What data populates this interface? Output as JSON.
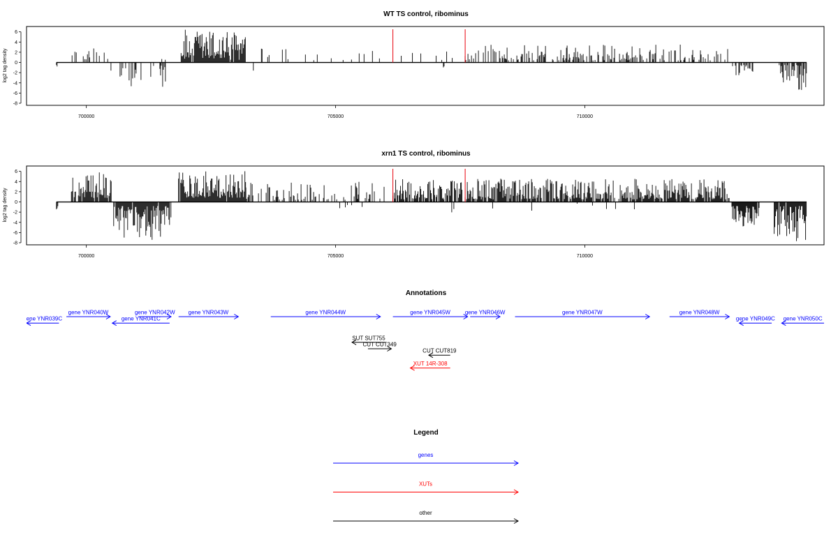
{
  "chart_data": [
    {
      "type": "bar",
      "title": "WT TS control, ribominus",
      "ylabel": "log2 tag density",
      "xlabel": "",
      "xlim": [
        698800,
        714800
      ],
      "ylim": [
        -8,
        6.5
      ],
      "yticks": [
        6,
        4,
        2,
        0,
        -2,
        -4,
        -6,
        -8
      ],
      "xticks": [
        700000,
        705000,
        710000
      ],
      "xtick_labels": [
        "700000",
        "705000",
        "710000"
      ],
      "baseline": [
        699400,
        714450
      ],
      "highlight_lines": [
        {
          "x": 706150,
          "color": "#e8000b",
          "value": 6.5
        },
        {
          "x": 707600,
          "color": "#e8000b",
          "value": 6.5
        }
      ],
      "series": [
        {
          "color": "#000000",
          "segments": [
            {
              "from": 699400,
              "to": 699420,
              "strand": "-",
              "min": 0.5,
              "max": 1.1,
              "density": 0.8
            },
            {
              "from": 699700,
              "to": 700480,
              "strand": "+",
              "min": 0.6,
              "max": 3.0,
              "density": 0.35
            },
            {
              "from": 700480,
              "to": 701600,
              "strand": "-",
              "min": 0.5,
              "max": 5.4,
              "density": 0.3
            },
            {
              "from": 701500,
              "to": 701600,
              "strand": "+",
              "min": 0.5,
              "max": 1.5,
              "density": 0.2
            },
            {
              "from": 701900,
              "to": 703200,
              "strand": "+",
              "min": 0.5,
              "max": 6.5,
              "density": 0.95
            },
            {
              "from": 703350,
              "to": 703360,
              "strand": "-",
              "min": 1.5,
              "max": 1.6,
              "density": 1
            },
            {
              "from": 703400,
              "to": 706000,
              "strand": "+",
              "min": 0.4,
              "max": 2.8,
              "density": 0.08
            },
            {
              "from": 706150,
              "to": 707600,
              "strand": "+",
              "min": 0.4,
              "max": 2.6,
              "density": 0.12
            },
            {
              "from": 706700,
              "to": 707600,
              "strand": "-",
              "min": 0.4,
              "max": 1.5,
              "density": 0.03
            },
            {
              "from": 707600,
              "to": 712000,
              "strand": "+",
              "min": 0.4,
              "max": 3.5,
              "density": 0.4
            },
            {
              "from": 711900,
              "to": 712900,
              "strand": "+",
              "min": 0.4,
              "max": 3.0,
              "density": 0.35
            },
            {
              "from": 712950,
              "to": 713400,
              "strand": "-",
              "min": 0.5,
              "max": 2.6,
              "density": 0.3
            },
            {
              "from": 713900,
              "to": 714450,
              "strand": "-",
              "min": 0.5,
              "max": 5.4,
              "density": 0.75
            }
          ]
        }
      ]
    },
    {
      "type": "bar",
      "title": "xrn1 TS control, ribominus",
      "ylabel": "log2 tag density",
      "xlabel": "",
      "xlim": [
        698800,
        714800
      ],
      "ylim": [
        -8,
        6.5
      ],
      "yticks": [
        6,
        4,
        2,
        0,
        -2,
        -4,
        -6,
        -8
      ],
      "xticks": [
        700000,
        705000,
        710000
      ],
      "xtick_labels": [
        "700000",
        "705000",
        "710000"
      ],
      "baseline": [
        699400,
        714450
      ],
      "highlight_lines": [
        {
          "x": 706150,
          "color": "#e8000b",
          "value": 6.5
        },
        {
          "x": 707600,
          "color": "#e8000b",
          "value": 6.5
        }
      ],
      "series": [
        {
          "color": "#000000",
          "segments": [
            {
              "from": 699400,
              "to": 699440,
              "strand": "-",
              "min": 0.8,
              "max": 2.8,
              "density": 0.9
            },
            {
              "from": 699700,
              "to": 700500,
              "strand": "+",
              "min": 0.8,
              "max": 6.0,
              "density": 0.95
            },
            {
              "from": 700520,
              "to": 701700,
              "strand": "-",
              "min": 0.8,
              "max": 7.6,
              "density": 0.95
            },
            {
              "from": 701850,
              "to": 703200,
              "strand": "+",
              "min": 0.8,
              "max": 6.2,
              "density": 0.97
            },
            {
              "from": 703200,
              "to": 706000,
              "strand": "+",
              "min": 0.4,
              "max": 4.0,
              "density": 0.35
            },
            {
              "from": 705000,
              "to": 706000,
              "strand": "-",
              "min": 0.3,
              "max": 1.3,
              "density": 0.05
            },
            {
              "from": 706150,
              "to": 707550,
              "strand": "+",
              "min": 0.5,
              "max": 4.5,
              "density": 0.75
            },
            {
              "from": 706700,
              "to": 707600,
              "strand": "-",
              "min": 0.3,
              "max": 2.2,
              "density": 0.07
            },
            {
              "from": 707600,
              "to": 712900,
              "strand": "+",
              "min": 0.5,
              "max": 4.6,
              "density": 0.85
            },
            {
              "from": 707800,
              "to": 712500,
              "strand": "-",
              "min": 0.3,
              "max": 1.8,
              "density": 0.04
            },
            {
              "from": 712950,
              "to": 713500,
              "strand": "-",
              "min": 0.8,
              "max": 4.8,
              "density": 0.95
            },
            {
              "from": 713800,
              "to": 714450,
              "strand": "-",
              "min": 0.8,
              "max": 7.8,
              "density": 0.95
            }
          ]
        }
      ]
    }
  ],
  "annotations": {
    "title": "Annotations",
    "items": [
      {
        "label": "gene YNR039C",
        "strand": "-",
        "start": 698800,
        "end": 699450,
        "row": 1,
        "color": "#0000ff"
      },
      {
        "label": "gene YNR040W",
        "strand": "+",
        "start": 699600,
        "end": 700480,
        "row": 0,
        "color": "#0000ff"
      },
      {
        "label": "gene YNR041C",
        "strand": "-",
        "start": 700520,
        "end": 701670,
        "row": 1,
        "color": "#0000ff"
      },
      {
        "label": "gene YNR042W",
        "strand": "+",
        "start": 701050,
        "end": 701700,
        "row": 0,
        "color": "#0000ff"
      },
      {
        "label": "gene YNR043W",
        "strand": "+",
        "start": 701850,
        "end": 703050,
        "row": 0,
        "color": "#0000ff"
      },
      {
        "label": "gene YNR044W",
        "strand": "+",
        "start": 703700,
        "end": 705900,
        "row": 0,
        "color": "#0000ff"
      },
      {
        "label": "gene YNR045W",
        "strand": "+",
        "start": 706150,
        "end": 707650,
        "row": 0,
        "color": "#0000ff"
      },
      {
        "label": "gene YNR046W",
        "strand": "+",
        "start": 707700,
        "end": 708300,
        "row": 0,
        "color": "#0000ff"
      },
      {
        "label": "gene YNR047W",
        "strand": "+",
        "start": 708600,
        "end": 711300,
        "row": 0,
        "color": "#0000ff"
      },
      {
        "label": "gene YNR048W",
        "strand": "+",
        "start": 711700,
        "end": 712900,
        "row": 0,
        "color": "#0000ff"
      },
      {
        "label": "gene YNR049C",
        "strand": "-",
        "start": 713100,
        "end": 713750,
        "row": 1,
        "color": "#0000ff"
      },
      {
        "label": "gene YNR050C",
        "strand": "-",
        "start": 713950,
        "end": 714800,
        "row": 1,
        "color": "#0000ff"
      },
      {
        "label": "SUT SUT755",
        "strand": "-",
        "start": 705330,
        "end": 706000,
        "row": 4,
        "color": "#000000"
      },
      {
        "label": "CUT CUT349",
        "strand": "+",
        "start": 705650,
        "end": 706120,
        "row": 5,
        "color": "#000000"
      },
      {
        "label": "CUT CUT819",
        "strand": "-",
        "start": 706870,
        "end": 707300,
        "row": 6,
        "color": "#000000"
      },
      {
        "label": "XUT 14R-308",
        "strand": "-",
        "start": 706500,
        "end": 707300,
        "row": 8,
        "color": "#ff0000"
      }
    ]
  },
  "legend": {
    "title": "Legend",
    "items": [
      {
        "label": "genes",
        "color": "#0000ff"
      },
      {
        "label": "XUTs",
        "color": "#ff0000"
      },
      {
        "label": "other",
        "color": "#000000"
      }
    ]
  }
}
